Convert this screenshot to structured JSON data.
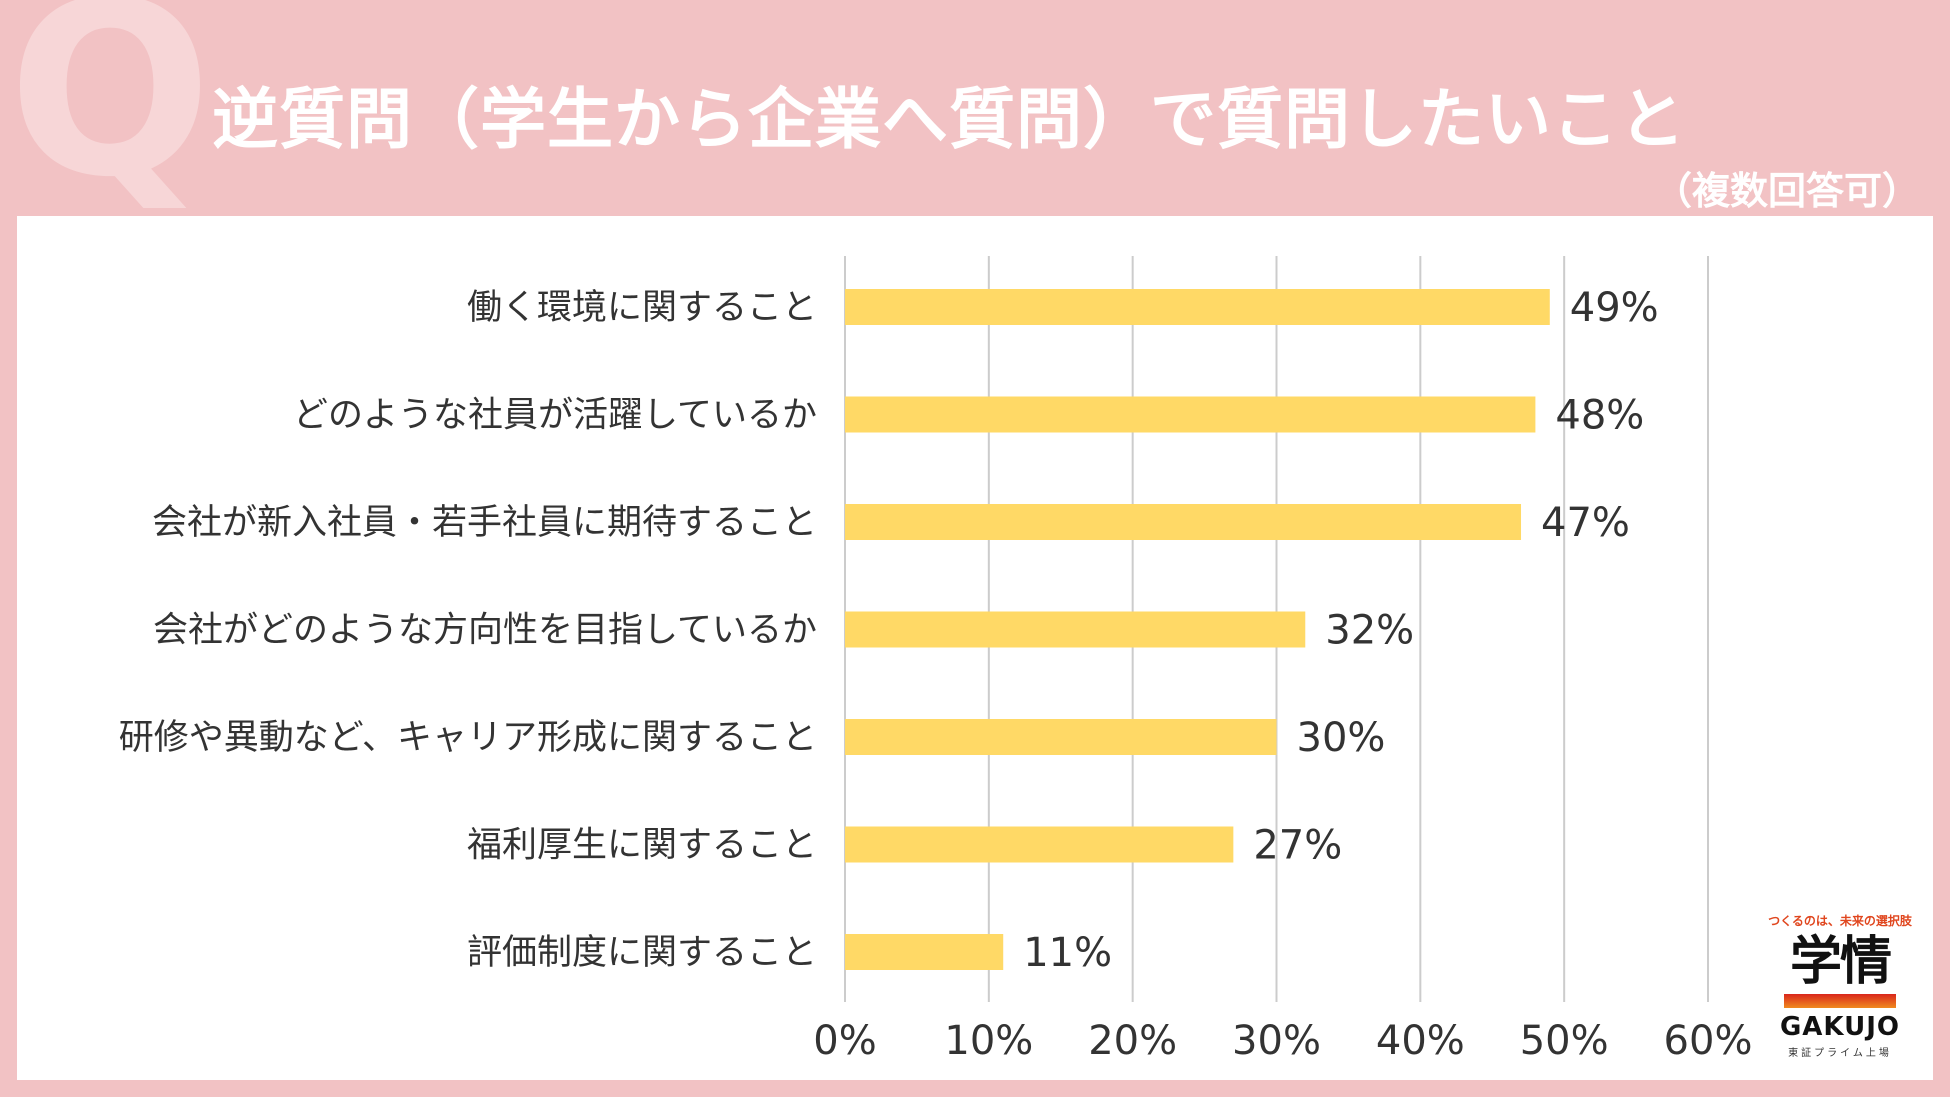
{
  "header": {
    "q_letter": "Q",
    "title": "逆質問（学生から企業へ質問）で質問したいこと",
    "subtitle": "（複数回答可）"
  },
  "chart_data": {
    "type": "bar",
    "orientation": "horizontal",
    "categories": [
      "働く環境に関すること",
      "どのような社員が活躍しているか",
      "会社が新入社員・若手社員に期待すること",
      "会社がどのような方向性を目指しているか",
      "研修や異動など、キャリア形成に関すること",
      "福利厚生に関すること",
      "評価制度に関すること"
    ],
    "values": [
      49,
      48,
      47,
      32,
      30,
      27,
      11
    ],
    "value_labels": [
      "49%",
      "48%",
      "47%",
      "32%",
      "30%",
      "27%",
      "11%"
    ],
    "xlim": [
      0,
      60
    ],
    "xticks": [
      0,
      10,
      20,
      30,
      40,
      50,
      60
    ],
    "xtick_labels": [
      "0%",
      "10%",
      "20%",
      "30%",
      "40%",
      "50%",
      "60%"
    ],
    "grid": "vertical",
    "bar_color": "#ffd966",
    "grid_color": "#cccccc"
  },
  "logo": {
    "tagline": "つくるのは、未来の選択肢",
    "brand_jp": "学情",
    "brand_en": "GAKUJO",
    "listing": "東証プライム上場"
  },
  "colors": {
    "background": "#f2c2c4",
    "panel": "#ffffff",
    "text": "#333333"
  }
}
